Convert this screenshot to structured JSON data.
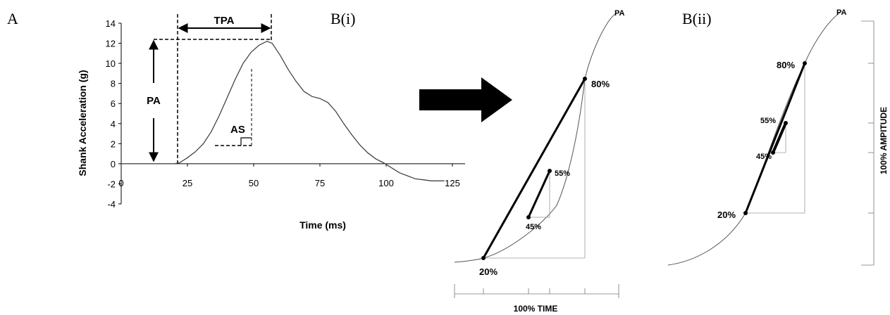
{
  "panels": {
    "a": "A",
    "b_i": "B(i)",
    "b_ii": "B(ii)"
  },
  "chart_data": [
    {
      "type": "line",
      "panel": "A",
      "xlabel": "Time (ms)",
      "ylabel": "Shank Acceleration (g)",
      "xlim": [
        0,
        125
      ],
      "ylim": [
        -4,
        14
      ],
      "x_ticks": [
        "0",
        "25",
        "50",
        "75",
        "100",
        "125"
      ],
      "y_ticks": [
        "-4",
        "-2",
        "0",
        "2",
        "4",
        "6",
        "8",
        "10",
        "12",
        "14"
      ],
      "grid": false,
      "series": [
        {
          "x": [
            0,
            5,
            10,
            15,
            20,
            22,
            25,
            28,
            31,
            34,
            37,
            40,
            43,
            46,
            49,
            52,
            55,
            57,
            60,
            63,
            66,
            69,
            72,
            75,
            78,
            81,
            84,
            87,
            90,
            93,
            96,
            99,
            102,
            105,
            108,
            111,
            114,
            117,
            120,
            122
          ],
          "y": [
            0,
            0,
            0,
            0,
            0,
            0.1,
            0.6,
            1.2,
            2.0,
            3.2,
            4.8,
            6.6,
            8.4,
            10.0,
            11.1,
            11.8,
            12.2,
            12.0,
            10.8,
            9.4,
            8.2,
            7.2,
            6.7,
            6.5,
            6.1,
            5.2,
            4.0,
            2.9,
            1.9,
            1.1,
            0.5,
            0.1,
            -0.4,
            -0.9,
            -1.2,
            -1.5,
            -1.6,
            -1.7,
            -1.7,
            -1.7
          ]
        }
      ],
      "annotations": {
        "tpa": "TPA",
        "pa": "PA",
        "as": "AS"
      }
    },
    {
      "type": "line",
      "panel": "B(i)",
      "xlabel": "100% TIME",
      "labels": {
        "peak": "PA",
        "p80": "80%",
        "p55": "55%",
        "p45": "45%",
        "p20": "20%"
      }
    },
    {
      "type": "line",
      "panel": "B(ii)",
      "ylabel": "100% AMPITUDE",
      "labels": {
        "peak": "PA",
        "p80": "80%",
        "p55": "55%",
        "p45": "45%",
        "p20": "20%"
      }
    }
  ]
}
